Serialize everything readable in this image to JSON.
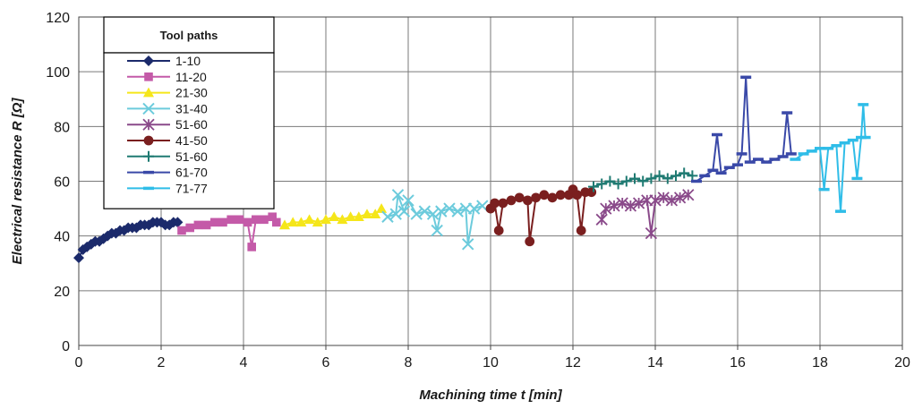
{
  "chart_data": {
    "type": "scatter",
    "title": "",
    "xlabel": "Machining time t [min]",
    "ylabel": "Electrical resistance R [Ω]",
    "xlim": [
      0,
      20
    ],
    "ylim": [
      0,
      120
    ],
    "x_ticks": [
      "0",
      "2",
      "4",
      "6",
      "8",
      "10",
      "12",
      "14",
      "16",
      "18",
      "20"
    ],
    "y_ticks": [
      "0",
      "20",
      "40",
      "60",
      "80",
      "100",
      "120"
    ],
    "grid": true,
    "legend": {
      "title": "Tool paths",
      "placement": "top-left"
    },
    "series": [
      {
        "name": "1-10",
        "color": "#1b2a6b",
        "marker": "diamond",
        "points": [
          [
            0.0,
            32
          ],
          [
            0.1,
            35
          ],
          [
            0.2,
            36
          ],
          [
            0.3,
            37
          ],
          [
            0.4,
            38
          ],
          [
            0.5,
            38
          ],
          [
            0.6,
            39
          ],
          [
            0.7,
            40
          ],
          [
            0.8,
            41
          ],
          [
            0.9,
            41
          ],
          [
            1.0,
            42
          ],
          [
            1.1,
            42
          ],
          [
            1.2,
            43
          ],
          [
            1.3,
            43
          ],
          [
            1.4,
            43
          ],
          [
            1.5,
            44
          ],
          [
            1.6,
            44
          ],
          [
            1.7,
            44
          ],
          [
            1.8,
            45
          ],
          [
            1.9,
            45
          ],
          [
            2.0,
            45
          ],
          [
            2.1,
            44
          ],
          [
            2.2,
            44
          ],
          [
            2.3,
            45
          ],
          [
            2.4,
            45
          ]
        ]
      },
      {
        "name": "11-20",
        "color": "#c45aa8",
        "marker": "square",
        "points": [
          [
            2.5,
            42
          ],
          [
            2.7,
            43
          ],
          [
            2.9,
            44
          ],
          [
            3.1,
            44
          ],
          [
            3.3,
            45
          ],
          [
            3.5,
            45
          ],
          [
            3.7,
            46
          ],
          [
            3.9,
            46
          ],
          [
            4.1,
            45
          ],
          [
            4.2,
            36
          ],
          [
            4.3,
            46
          ],
          [
            4.5,
            46
          ],
          [
            4.7,
            47
          ],
          [
            4.8,
            45
          ]
        ]
      },
      {
        "name": "21-30",
        "color": "#f5e61a",
        "marker": "triangle",
        "points": [
          [
            5.0,
            44
          ],
          [
            5.2,
            45
          ],
          [
            5.4,
            45
          ],
          [
            5.6,
            46
          ],
          [
            5.8,
            45
          ],
          [
            6.0,
            46
          ],
          [
            6.2,
            47
          ],
          [
            6.4,
            46
          ],
          [
            6.6,
            47
          ],
          [
            6.8,
            47
          ],
          [
            7.0,
            48
          ],
          [
            7.2,
            48
          ],
          [
            7.35,
            50
          ]
        ]
      },
      {
        "name": "31-40",
        "color": "#6ccbdc",
        "marker": "x",
        "points": [
          [
            7.5,
            47
          ],
          [
            7.7,
            48
          ],
          [
            7.75,
            55
          ],
          [
            7.9,
            49
          ],
          [
            8.0,
            53
          ],
          [
            8.2,
            48
          ],
          [
            8.4,
            49
          ],
          [
            8.6,
            48
          ],
          [
            8.7,
            42
          ],
          [
            8.8,
            49
          ],
          [
            9.0,
            50
          ],
          [
            9.2,
            49
          ],
          [
            9.4,
            50
          ],
          [
            9.45,
            37
          ],
          [
            9.6,
            50
          ],
          [
            9.8,
            51
          ]
        ]
      },
      {
        "name": "51-60",
        "color": "#8a4a8a",
        "marker": "star",
        "points": [
          [
            12.7,
            46
          ],
          [
            12.8,
            50
          ],
          [
            13.0,
            51
          ],
          [
            13.2,
            52
          ],
          [
            13.4,
            51
          ],
          [
            13.6,
            52
          ],
          [
            13.8,
            53
          ],
          [
            13.9,
            41
          ],
          [
            14.0,
            53
          ],
          [
            14.2,
            54
          ],
          [
            14.4,
            53
          ],
          [
            14.6,
            54
          ],
          [
            14.8,
            55
          ]
        ]
      },
      {
        "name": "41-50",
        "color": "#7a1f1f",
        "marker": "circle",
        "points": [
          [
            10.0,
            50
          ],
          [
            10.1,
            52
          ],
          [
            10.2,
            42
          ],
          [
            10.3,
            52
          ],
          [
            10.5,
            53
          ],
          [
            10.7,
            54
          ],
          [
            10.9,
            53
          ],
          [
            10.95,
            38
          ],
          [
            11.1,
            54
          ],
          [
            11.3,
            55
          ],
          [
            11.5,
            54
          ],
          [
            11.7,
            55
          ],
          [
            11.9,
            55
          ],
          [
            12.0,
            57
          ],
          [
            12.1,
            55
          ],
          [
            12.2,
            42
          ],
          [
            12.3,
            56
          ],
          [
            12.45,
            56
          ]
        ]
      },
      {
        "name": "51-60",
        "color": "#1f7a72",
        "marker": "plus",
        "points": [
          [
            12.5,
            58
          ],
          [
            12.7,
            59
          ],
          [
            12.9,
            60
          ],
          [
            13.1,
            59
          ],
          [
            13.3,
            60
          ],
          [
            13.5,
            61
          ],
          [
            13.7,
            60
          ],
          [
            13.9,
            61
          ],
          [
            14.1,
            62
          ],
          [
            14.3,
            61
          ],
          [
            14.5,
            62
          ],
          [
            14.7,
            63
          ],
          [
            14.9,
            62
          ]
        ]
      },
      {
        "name": "61-70",
        "color": "#3a49a8",
        "marker": "dash",
        "points": [
          [
            15.0,
            60
          ],
          [
            15.2,
            62
          ],
          [
            15.4,
            64
          ],
          [
            15.5,
            77
          ],
          [
            15.6,
            63
          ],
          [
            15.8,
            65
          ],
          [
            16.0,
            66
          ],
          [
            16.1,
            70
          ],
          [
            16.2,
            98
          ],
          [
            16.3,
            67
          ],
          [
            16.5,
            68
          ],
          [
            16.7,
            67
          ],
          [
            16.9,
            68
          ],
          [
            17.1,
            69
          ],
          [
            17.2,
            85
          ],
          [
            17.3,
            70
          ]
        ]
      },
      {
        "name": "71-77",
        "color": "#2fbde8",
        "marker": "dash",
        "points": [
          [
            17.4,
            68
          ],
          [
            17.6,
            70
          ],
          [
            17.8,
            71
          ],
          [
            18.0,
            72
          ],
          [
            18.1,
            57
          ],
          [
            18.2,
            72
          ],
          [
            18.4,
            73
          ],
          [
            18.5,
            49
          ],
          [
            18.6,
            74
          ],
          [
            18.8,
            75
          ],
          [
            18.9,
            61
          ],
          [
            19.0,
            76
          ],
          [
            19.05,
            88
          ],
          [
            19.1,
            76
          ]
        ]
      }
    ]
  }
}
